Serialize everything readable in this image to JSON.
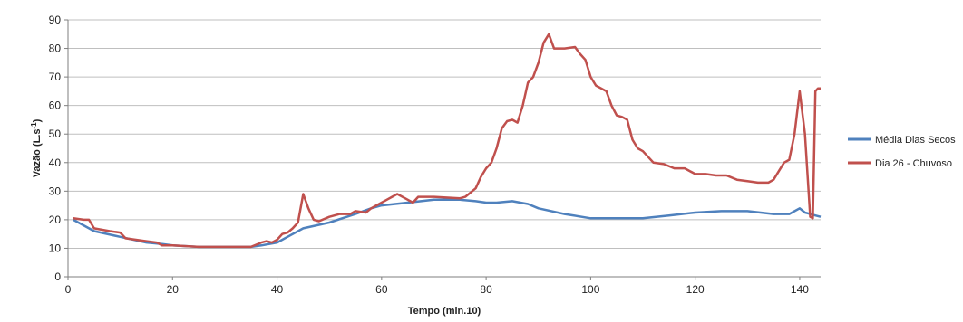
{
  "chart_data": {
    "type": "line",
    "title": "",
    "xlabel": "Tempo (min.10)",
    "ylabel": "Vazão (L.s",
    "ylabel_sup": "-1",
    "ylabel_close": ")",
    "xlim": [
      0,
      144
    ],
    "ylim": [
      0,
      90
    ],
    "xticks": [
      0,
      20,
      40,
      60,
      80,
      100,
      120,
      140
    ],
    "yticks": [
      0,
      10,
      20,
      30,
      40,
      50,
      60,
      70,
      80,
      90
    ],
    "grid": true,
    "legend_position": "right",
    "series": [
      {
        "name": "Média Dias Secos",
        "color": "#4f81bd",
        "x": [
          1,
          5,
          10,
          15,
          18,
          20,
          25,
          30,
          35,
          37,
          40,
          42,
          45,
          50,
          55,
          58,
          60,
          65,
          70,
          75,
          78,
          80,
          82,
          85,
          88,
          90,
          95,
          100,
          105,
          110,
          115,
          120,
          125,
          130,
          135,
          138,
          140,
          141,
          142,
          143,
          144
        ],
        "y": [
          20,
          16,
          14,
          12,
          11.5,
          11,
          10.5,
          10.5,
          10.5,
          11,
          12,
          14,
          17,
          19,
          22,
          24,
          25,
          26,
          27,
          27,
          26.5,
          26,
          26,
          26.5,
          25.5,
          24,
          22,
          20.5,
          20.5,
          20.5,
          21.5,
          22.5,
          23,
          23,
          22,
          22,
          24,
          22.5,
          22,
          21.5,
          21
        ]
      },
      {
        "name": "Dia 26 - Chuvoso",
        "color": "#c0504d",
        "x": [
          1,
          3,
          4,
          5,
          8,
          10,
          11,
          15,
          17,
          18,
          20,
          25,
          30,
          35,
          37,
          38,
          39,
          40,
          41,
          42,
          43,
          44,
          45,
          46,
          47,
          48,
          50,
          52,
          54,
          55,
          57,
          58,
          59,
          60,
          61,
          62,
          63,
          65,
          66,
          67,
          70,
          75,
          76,
          78,
          79,
          80,
          81,
          82,
          83,
          84,
          85,
          86,
          87,
          88,
          89,
          90,
          91,
          92,
          93,
          95,
          97,
          98,
          99,
          100,
          101,
          102,
          103,
          104,
          105,
          106,
          107,
          108,
          109,
          110,
          112,
          114,
          116,
          118,
          120,
          122,
          124,
          126,
          128,
          130,
          132,
          134,
          135,
          136,
          137,
          138,
          139,
          140,
          141,
          142,
          142.5,
          143,
          143.5,
          144
        ],
        "y": [
          20.5,
          20,
          20,
          17,
          16,
          15.5,
          13.5,
          12.5,
          12,
          11,
          11,
          10.5,
          10.5,
          10.5,
          12,
          12.5,
          12,
          13,
          15,
          15.5,
          17,
          19,
          29,
          24,
          20,
          19.5,
          21,
          22,
          22,
          23,
          22.5,
          24,
          25,
          26,
          27,
          28,
          29,
          27,
          26,
          28,
          28,
          27.5,
          28,
          31,
          35,
          38,
          40,
          45,
          52,
          54.5,
          55,
          54,
          60,
          68,
          70,
          75,
          82,
          85,
          80,
          80,
          80.5,
          78,
          76,
          70,
          67,
          66,
          65,
          60,
          56.5,
          56,
          55,
          48,
          45,
          44,
          40,
          39.5,
          38,
          38,
          36,
          36,
          35.5,
          35.5,
          34,
          33.5,
          33,
          33,
          34,
          37,
          40,
          41,
          50,
          65,
          50,
          21,
          20.5,
          65,
          66,
          66
        ]
      }
    ]
  }
}
